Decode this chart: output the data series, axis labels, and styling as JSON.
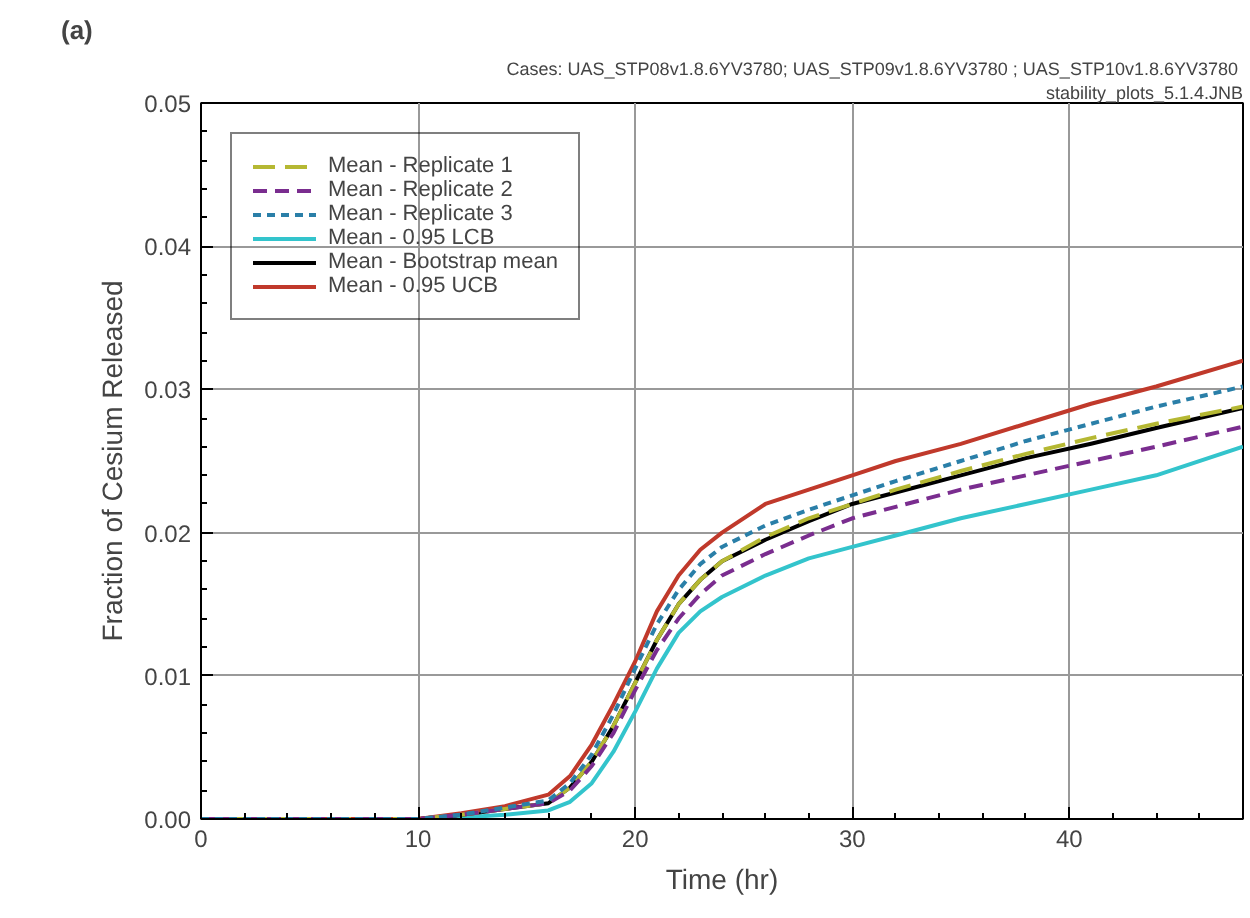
{
  "chart_data": {
    "type": "line",
    "title": "(a)",
    "annotations": [
      "Cases:  UAS_STP08v1.8.6YV3780; UAS_STP09v1.8.6YV3780 ; UAS_STP10v1.8.6YV3780",
      "stability_plots_5.1.4.JNB"
    ],
    "xlabel": "Time (hr)",
    "ylabel": "Fraction of Cesium Released",
    "x": [
      0,
      10,
      12,
      14,
      16,
      17,
      18,
      19,
      20,
      21,
      22,
      23,
      24,
      26,
      28,
      30,
      32,
      35,
      38,
      41,
      44,
      48
    ],
    "series": [
      {
        "name": "Mean - Replicate 1",
        "color": "#b5b833",
        "line_style": "dashed",
        "values": [
          0,
          0,
          0.0003,
          0.0007,
          0.0011,
          0.0022,
          0.004,
          0.0065,
          0.0095,
          0.0125,
          0.015,
          0.0167,
          0.018,
          0.0197,
          0.021,
          0.022,
          0.023,
          0.0243,
          0.0255,
          0.0266,
          0.0276,
          0.0288
        ]
      },
      {
        "name": "Mean - Replicate 2",
        "color": "#7a2d8f",
        "line_style": "dashed",
        "values": [
          0,
          0,
          0.0003,
          0.0007,
          0.0011,
          0.002,
          0.0037,
          0.006,
          0.009,
          0.0118,
          0.014,
          0.0157,
          0.017,
          0.0185,
          0.0198,
          0.021,
          0.0218,
          0.023,
          0.024,
          0.025,
          0.026,
          0.0274
        ]
      },
      {
        "name": "Mean - Replicate 3",
        "color": "#2a7fa8",
        "line_style": "dashed",
        "values": [
          0,
          0,
          0.0003,
          0.0008,
          0.0013,
          0.0025,
          0.0045,
          0.0073,
          0.0105,
          0.0136,
          0.016,
          0.0178,
          0.019,
          0.0205,
          0.0216,
          0.0226,
          0.0236,
          0.025,
          0.0264,
          0.0276,
          0.0288,
          0.0302
        ]
      },
      {
        "name": "Mean - 0.95 LCB",
        "color": "#33c4cc",
        "line_style": "solid",
        "values": [
          0,
          0,
          0.0001,
          0.0003,
          0.0006,
          0.0012,
          0.0025,
          0.0047,
          0.0075,
          0.0105,
          0.013,
          0.0145,
          0.0155,
          0.017,
          0.0182,
          0.019,
          0.0198,
          0.021,
          0.022,
          0.023,
          0.024,
          0.026
        ]
      },
      {
        "name": "Mean - Bootstrap mean",
        "color": "#000000",
        "line_style": "solid",
        "values": [
          0,
          0,
          0.0003,
          0.0007,
          0.0011,
          0.0022,
          0.004,
          0.0065,
          0.0095,
          0.0125,
          0.015,
          0.0167,
          0.018,
          0.0195,
          0.0208,
          0.022,
          0.0228,
          0.024,
          0.0252,
          0.0262,
          0.0273,
          0.0287
        ]
      },
      {
        "name": "Mean - 0.95 UCB",
        "color": "#c0392b",
        "line_style": "solid",
        "values": [
          0,
          0,
          0.0004,
          0.0009,
          0.0017,
          0.003,
          0.0052,
          0.008,
          0.011,
          0.0145,
          0.017,
          0.0188,
          0.02,
          0.022,
          0.023,
          0.024,
          0.025,
          0.0262,
          0.0276,
          0.029,
          0.0302,
          0.032
        ]
      }
    ],
    "xlim": [
      0,
      48
    ],
    "xticks": [
      0,
      10,
      20,
      30,
      40
    ],
    "ylim": [
      0,
      0.05
    ],
    "yticks": [
      {
        "value": 0,
        "label": "0.00"
      },
      {
        "value": 0.01,
        "label": "0.01"
      },
      {
        "value": 0.02,
        "label": "0.02"
      },
      {
        "value": 0.03,
        "label": "0.03"
      },
      {
        "value": 0.04,
        "label": "0.04"
      },
      {
        "value": 0.05,
        "label": "0.05"
      }
    ],
    "grid": true,
    "legend": "top left",
    "marker": "none"
  }
}
